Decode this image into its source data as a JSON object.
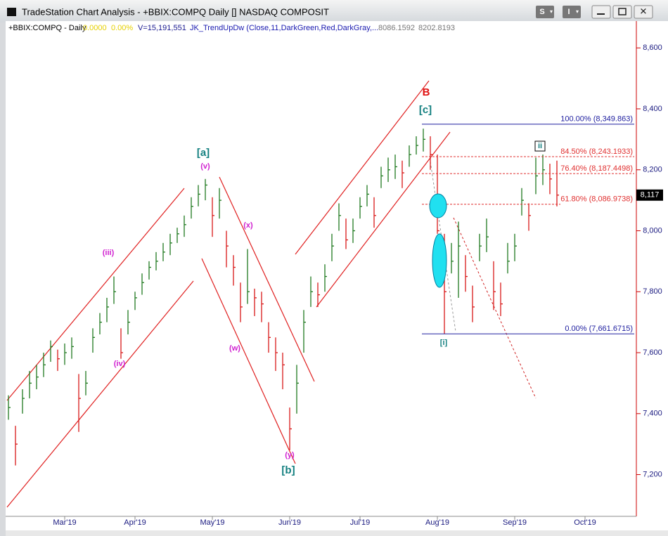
{
  "window": {
    "title": "TradeStation Chart Analysis - +BBIX:COMPQ Daily [] NASDAQ COMPOSIT",
    "buttons": [
      "S",
      "I"
    ]
  },
  "info": {
    "symbol": "+BBIX:COMPQ - Daily",
    "change": "0.0000",
    "pct_change": "0.00%",
    "volume": "V=15,191,551",
    "indicator": "JK_TrendUpDw (Close,11,DarkGreen,Red,DarkGray,...",
    "value1": "8086.1592",
    "value2": "8202.8193"
  },
  "chart_data": {
    "type": "ohlc",
    "categories": [
      null,
      null,
      null,
      null,
      null,
      null,
      null,
      null,
      "Mar'19",
      null,
      null,
      null,
      null,
      null,
      null,
      null,
      null,
      null,
      "Apr'19",
      null,
      null,
      null,
      null,
      null,
      null,
      null,
      null,
      null,
      null,
      "May'19",
      null,
      null,
      null,
      null,
      null,
      null,
      null,
      null,
      null,
      null,
      "Jun'19",
      null,
      null,
      null,
      null,
      null,
      null,
      null,
      null,
      null,
      "Jul'19",
      null,
      null,
      null,
      null,
      null,
      null,
      null,
      null,
      null,
      null,
      "Aug'19",
      null,
      null,
      null,
      null,
      null,
      null,
      null,
      null,
      null,
      null,
      "Sep'19",
      null,
      null,
      null,
      null,
      null,
      null,
      null,
      null,
      null,
      "Oct'19",
      null,
      null,
      null,
      null,
      null,
      null,
      null
    ],
    "series": [
      {
        "name": "+BBIX:COMPQ",
        "up_color": "#1f7a1f",
        "down_color": "#d81818",
        "high": [
          7460,
          7360,
          7480,
          7540,
          7560,
          7600,
          7640,
          7610,
          7630,
          7650,
          7530,
          7540,
          7680,
          7730,
          7780,
          7850,
          7680,
          7740,
          7800,
          7860,
          7900,
          7930,
          7960,
          7990,
          8010,
          8050,
          8110,
          8150,
          8170,
          8110,
          8140,
          8000,
          7920,
          7830,
          7940,
          7810,
          7800,
          7700,
          7650,
          7600,
          7420,
          7560,
          7740,
          7850,
          7830,
          7890,
          7990,
          8090,
          8040,
          8040,
          8110,
          8150,
          8110,
          8210,
          8240,
          8250,
          8230,
          8280,
          8310,
          8335,
          8310,
          8250,
          7990,
          7960,
          8030,
          7920,
          7820,
          7990,
          8040,
          7900,
          7830,
          7960,
          7990,
          8140,
          8090,
          8240,
          8250,
          8220,
          8230,
          null,
          null,
          null,
          null,
          null,
          null,
          null,
          null,
          null,
          null,
          null
        ],
        "low": [
          7380,
          7230,
          7400,
          7450,
          7480,
          7520,
          7570,
          7540,
          7560,
          7580,
          7340,
          7460,
          7600,
          7660,
          7700,
          7760,
          7580,
          7660,
          7740,
          7790,
          7840,
          7870,
          7900,
          7920,
          7960,
          7980,
          8040,
          8080,
          8100,
          7980,
          8040,
          7880,
          7820,
          7700,
          7760,
          7720,
          7700,
          7600,
          7540,
          7480,
          7280,
          7400,
          7600,
          7750,
          7750,
          7800,
          7900,
          8000,
          7940,
          7960,
          8040,
          8080,
          8010,
          8140,
          8160,
          8170,
          8140,
          8210,
          8250,
          8260,
          8200,
          7990,
          7661,
          7860,
          7780,
          7800,
          7700,
          7900,
          7930,
          7740,
          7720,
          7860,
          7900,
          8050,
          8000,
          8120,
          8150,
          8120,
          8080,
          null,
          null,
          null,
          null,
          null,
          null,
          null,
          null,
          null,
          null,
          null
        ],
        "close": [
          7420,
          7300,
          7450,
          7500,
          7520,
          7560,
          7620,
          7580,
          7600,
          7620,
          7450,
          7500,
          7650,
          7700,
          7750,
          7800,
          7600,
          7700,
          7780,
          7830,
          7880,
          7900,
          7930,
          7960,
          7990,
          8020,
          8080,
          8120,
          8150,
          8050,
          8100,
          7950,
          7880,
          7750,
          7800,
          7780,
          7760,
          7650,
          7600,
          7560,
          7350,
          7500,
          7700,
          7800,
          7790,
          7850,
          7950,
          8050,
          7970,
          8000,
          8080,
          8120,
          8050,
          8180,
          8200,
          8210,
          8190,
          8250,
          8280,
          8300,
          8250,
          8000,
          7800,
          7900,
          7950,
          7850,
          7750,
          7950,
          7980,
          7800,
          7760,
          7900,
          7950,
          8100,
          8050,
          8180,
          8200,
          8170,
          8117,
          null,
          null,
          null,
          null,
          null,
          null,
          null,
          null,
          null,
          null,
          null
        ]
      }
    ],
    "ylim": [
      7063,
      8688
    ],
    "yticks": [
      {
        "value": 7200,
        "label": "7,200"
      },
      {
        "value": 7400,
        "label": "7,400"
      },
      {
        "value": 7600,
        "label": "7,600"
      },
      {
        "value": 7800,
        "label": "7,800"
      },
      {
        "value": 8000,
        "label": "8,000"
      },
      {
        "value": 8200,
        "label": "8,200"
      },
      {
        "value": 8400,
        "label": "8,400"
      },
      {
        "value": 8600,
        "label": "8,600"
      }
    ],
    "last_price": {
      "value": 8117,
      "label": "8,117"
    },
    "fib_levels": [
      {
        "value": 8349.863,
        "label": "100.00% (8,349.863)",
        "color": "#2020a0"
      },
      {
        "value": 8243.1933,
        "label": "84.50% (8,243.1933)",
        "color": "#e03030"
      },
      {
        "value": 8187.4498,
        "label": "76.40% (8,187.4498)",
        "color": "#e03030"
      },
      {
        "value": 8086.9738,
        "label": "61.80% (8,086.9738)",
        "color": "#e03030"
      },
      {
        "value": 7661.6715,
        "label": "0.00% (7,661.6715)",
        "color": "#2020a0"
      }
    ],
    "annotations": [
      {
        "text": "[a]",
        "color": "#148080"
      },
      {
        "text": "(v)",
        "color": "#d020d0"
      },
      {
        "text": "(iii)",
        "color": "#d020d0"
      },
      {
        "text": "(iv)",
        "color": "#d020d0"
      },
      {
        "text": "(x)",
        "color": "#d020d0"
      },
      {
        "text": "(w)",
        "color": "#d020d0"
      },
      {
        "text": "(y)",
        "color": "#d020d0"
      },
      {
        "text": "[b]",
        "color": "#148080"
      },
      {
        "text": "B",
        "color": "#e01010"
      },
      {
        "text": "[c]",
        "color": "#148080"
      },
      {
        "text": "[i]",
        "color": "#148080"
      },
      {
        "text": "ii",
        "color": "#148080"
      }
    ]
  }
}
